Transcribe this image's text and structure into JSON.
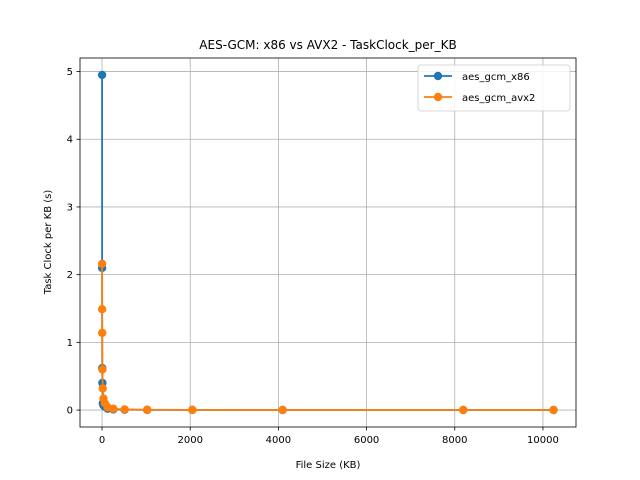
{
  "chart_data": {
    "type": "line",
    "title": "AES-GCM: x86 vs AVX2 - TaskClock_per_KB",
    "xlabel": "File Size (KB)",
    "ylabel": "Task Clock per KB (s)",
    "xlim": [
      -500,
      10750
    ],
    "ylim": [
      -0.25,
      5.2
    ],
    "xticks": [
      0,
      2000,
      4000,
      6000,
      8000,
      10000
    ],
    "yticks": [
      0,
      1,
      2,
      3,
      4,
      5
    ],
    "grid": true,
    "legend_position": "upper right",
    "series": [
      {
        "name": "aes_gcm_x86",
        "color": "#1f77b4",
        "marker": "circle",
        "x": [
          1,
          2,
          4,
          8,
          16,
          32,
          64,
          128,
          256,
          512,
          1024,
          2048,
          4096,
          8192,
          10240
        ],
        "y": [
          4.95,
          2.1,
          0.62,
          0.4,
          0.1,
          0.07,
          0.05,
          0.02,
          0.01,
          0.005,
          0.003,
          0.002,
          0.001,
          0.001,
          0.001
        ]
      },
      {
        "name": "aes_gcm_avx2",
        "color": "#ff7f0e",
        "marker": "circle",
        "x": [
          1,
          2,
          4,
          8,
          16,
          32,
          64,
          128,
          256,
          512,
          1024,
          2048,
          4096,
          8192,
          10240
        ],
        "y": [
          2.16,
          1.49,
          1.14,
          0.6,
          0.32,
          0.17,
          0.1,
          0.04,
          0.02,
          0.01,
          0.005,
          0.003,
          0.002,
          0.001,
          0.001
        ]
      }
    ]
  }
}
